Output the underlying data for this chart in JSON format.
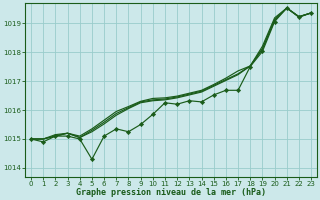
{
  "xlabel": "Graphe pression niveau de la mer (hPa)",
  "bg_color": "#cce8ea",
  "grid_color": "#99cccc",
  "line_color": "#1a5c1a",
  "ylim": [
    1013.7,
    1019.7
  ],
  "xlim": [
    -0.5,
    23.5
  ],
  "yticks": [
    1014,
    1015,
    1016,
    1017,
    1018,
    1019
  ],
  "xticks": [
    0,
    1,
    2,
    3,
    4,
    5,
    6,
    7,
    8,
    9,
    10,
    11,
    12,
    13,
    14,
    15,
    16,
    17,
    18,
    19,
    20,
    21,
    22,
    23
  ],
  "series": [
    {
      "data": [
        1015.0,
        1014.9,
        1015.1,
        1015.1,
        1015.0,
        1014.3,
        1015.1,
        1015.35,
        1015.25,
        1015.5,
        1015.85,
        1016.25,
        1016.2,
        1016.32,
        1016.28,
        1016.52,
        1016.68,
        1016.68,
        1017.5,
        1018.02,
        1019.05,
        1019.52,
        1019.2,
        1019.35
      ],
      "marker": true
    },
    {
      "data": [
        1015.0,
        1015.0,
        1015.1,
        1015.2,
        1015.05,
        1015.25,
        1015.52,
        1015.82,
        1016.05,
        1016.25,
        1016.32,
        1016.35,
        1016.42,
        1016.52,
        1016.62,
        1016.82,
        1017.02,
        1017.22,
        1017.52,
        1018.1,
        1019.1,
        1019.52,
        1019.22,
        1019.35
      ],
      "marker": false
    },
    {
      "data": [
        1015.0,
        1015.0,
        1015.1,
        1015.2,
        1015.05,
        1015.3,
        1015.58,
        1015.88,
        1016.08,
        1016.28,
        1016.35,
        1016.38,
        1016.45,
        1016.55,
        1016.65,
        1016.85,
        1017.05,
        1017.25,
        1017.52,
        1018.12,
        1019.12,
        1019.52,
        1019.22,
        1019.35
      ],
      "marker": false
    },
    {
      "data": [
        1015.0,
        1015.0,
        1015.15,
        1015.2,
        1015.1,
        1015.35,
        1015.65,
        1015.95,
        1016.12,
        1016.3,
        1016.4,
        1016.42,
        1016.48,
        1016.58,
        1016.68,
        1016.88,
        1017.1,
        1017.35,
        1017.52,
        1018.2,
        1019.18,
        1019.52,
        1019.22,
        1019.35
      ],
      "marker": false
    }
  ]
}
